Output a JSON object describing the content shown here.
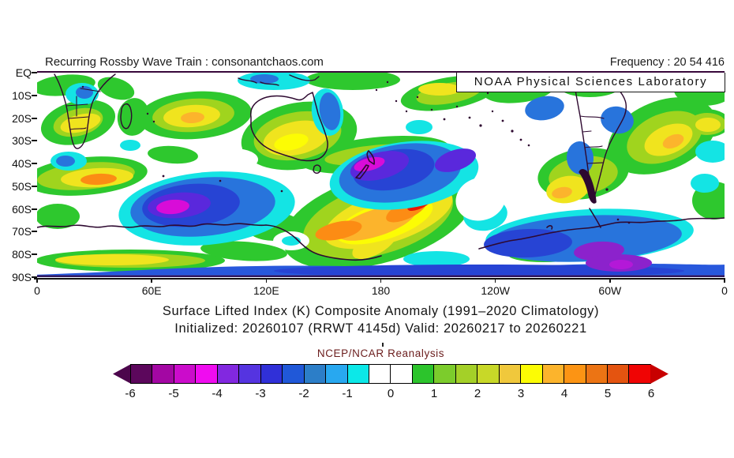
{
  "header": {
    "left_text": "Recurring Rossby Wave Train : consonantchaos.com",
    "right_text": "Frequency : 20 54 416",
    "noaa_label": "NOAA Physical Sciences Laboratory"
  },
  "titles": {
    "line1": "Surface Lifted Index (K) Composite Anomaly (1991–2020 Climatology)",
    "line2": "Initialized: 20260107 (RRWT 4145d) Valid: 20260217 to 20260221"
  },
  "map": {
    "y_axis_labels": [
      "EQ",
      "10S",
      "20S",
      "30S",
      "40S",
      "50S",
      "60S",
      "70S",
      "80S",
      "90S"
    ],
    "x_axis_labels": [
      "0",
      "60E",
      "120E",
      "180",
      "120W",
      "60W",
      "0"
    ],
    "coast_color": "#2e0930",
    "frame_color": "#38083a"
  },
  "colorbar": {
    "title": "NCEP/NCAR Reanalysis",
    "title_color": "#6b1d1d",
    "tick_labels": [
      "-6",
      "-5",
      "-4",
      "-3",
      "-2",
      "-1",
      "0",
      "1",
      "2",
      "3",
      "4",
      "5",
      "6"
    ],
    "cells": [
      "#5c075c",
      "#a307a3",
      "#cb0ccb",
      "#f00cf0",
      "#8228e0",
      "#5534e0",
      "#3030d8",
      "#2058d8",
      "#2c7ec8",
      "#28a8f0",
      "#0ce8e8",
      "#ffffff",
      "#ffffff",
      "#2cc42c",
      "#7ccc2c",
      "#a4d028",
      "#c8d828",
      "#f0c83c",
      "#fcfc04",
      "#fcb42c",
      "#fc9414",
      "#ec7414",
      "#e45410",
      "#f00404"
    ],
    "left_arrow_color": "#4c064c",
    "right_arrow_color": "#c80000"
  },
  "chart_data": {
    "type": "heatmap",
    "title": "Surface Lifted Index (K) Composite Anomaly (1991–2020 Climatology)",
    "subtitle": "Initialized: 20260107 (RRWT 4145d) Valid: 20260217 to 20260221",
    "source": "NCEP/NCAR Reanalysis",
    "provider": "NOAA Physical Sciences Laboratory",
    "watermark": "Recurring Rossby Wave Train : consonantchaos.com",
    "frequency": "20 54 416",
    "units": "K",
    "projection": "cylindrical, Southern Hemisphere",
    "lat_range": [
      "EQ",
      "90S"
    ],
    "lon_ticks_deg": [
      0,
      60,
      120,
      180,
      240,
      300,
      360
    ],
    "lat_ticks": [
      "EQ",
      "10S",
      "20S",
      "30S",
      "40S",
      "50S",
      "60S",
      "70S",
      "80S",
      "90S"
    ],
    "colorbar_levels": [
      -6,
      -5,
      -4,
      -3,
      -2,
      -1,
      0,
      1,
      2,
      3,
      4,
      5,
      6
    ],
    "colorbar_cell_step": 0.5,
    "legend_position": "bottom",
    "grid": false,
    "anomaly_centers": [
      {
        "approx_lat": "57S",
        "approx_lon": "65E",
        "value": -5,
        "description": "large negative cell, magenta core SW Indian Ocean"
      },
      {
        "approx_lat": "42S",
        "approx_lon": "172E",
        "value": -5,
        "description": "negative cell with magenta core over Tasman Sea / New Zealand"
      },
      {
        "approx_lat": "38S",
        "approx_lon": "218E",
        "value": -3,
        "description": "secondary violet core east of New Zealand"
      },
      {
        "approx_lat": "58S",
        "approx_lon": "200E",
        "value": 6,
        "description": "strong positive, red core near Ross Sea / 160W"
      },
      {
        "approx_lat": "68S",
        "approx_lon": "160E",
        "value": 4,
        "description": "orange band along Antarctic coast"
      },
      {
        "approx_lat": "47S",
        "approx_lon": "30E",
        "value": 4,
        "description": "orange ridge south of Africa"
      },
      {
        "approx_lat": "20S",
        "approx_lon": "80E",
        "value": 4,
        "description": "orange core central Indian Ocean"
      },
      {
        "approx_lat": "30S",
        "approx_lon": "135E",
        "value": 3,
        "description": "yellow ridge over Australia"
      },
      {
        "approx_lat": "52S",
        "approx_lon": "278E",
        "value": 4,
        "description": "yellow/amber over Patagonia"
      },
      {
        "approx_lat": "30S",
        "approx_lon": "330E",
        "value": 4,
        "description": "yellow/amber South Atlantic"
      },
      {
        "approx_lat": "78S",
        "approx_lon": "295E",
        "value": -4,
        "description": "purple band along Antarctic coast near Weddell Sea"
      },
      {
        "approx_lat": "88S",
        "approx_lon": "all",
        "value": -2,
        "description": "blue band along 85-90S"
      },
      {
        "approx_lat": "10S",
        "approx_lon": "25E",
        "value": -2,
        "description": "cyan/blue cell over central Africa"
      }
    ]
  }
}
